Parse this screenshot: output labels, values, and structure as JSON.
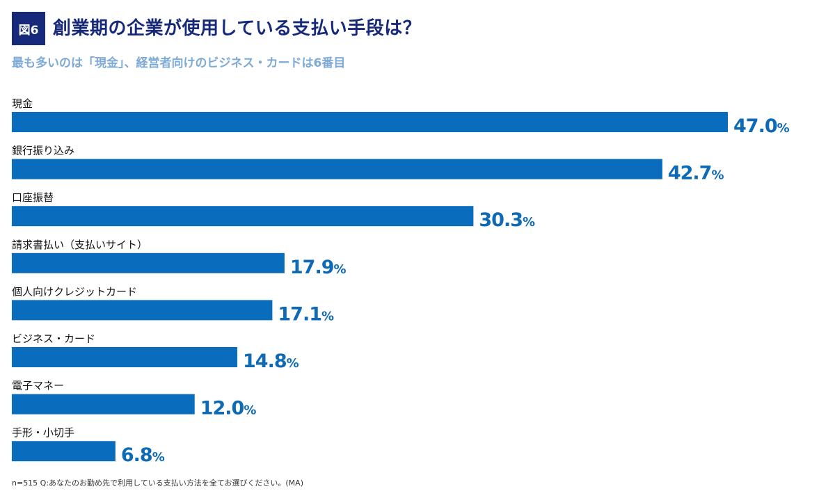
{
  "header": {
    "badge": "図6",
    "title": "創業期の企業が使用している支払い手段は？",
    "subtitle": "最も多いのは「現金」、経営者向けのビジネス・カードは6番目"
  },
  "chart_data": {
    "type": "bar",
    "orientation": "horizontal",
    "title": "創業期の企業が使用している支払い手段は？",
    "subtitle": "最も多いのは「現金」、経営者向けのビジネス・カードは6番目",
    "categories": [
      "現金",
      "銀行振り込み",
      "口座振替",
      "請求書払い（支払いサイト）",
      "個人向けクレジットカード",
      "ビジネス・カード",
      "電子マネー",
      "手形・小切手"
    ],
    "values": [
      47.0,
      42.7,
      30.3,
      17.9,
      17.1,
      14.8,
      12.0,
      6.8
    ],
    "unit": "%",
    "xlim": [
      0,
      47
    ],
    "grid": false,
    "bar_color": "#0a6cbc",
    "label_color": "#0e6ab5"
  },
  "footnote": "n=515 Q:あなたのお勤め先で利用している支払い方法を全てお選びください。(MA)"
}
